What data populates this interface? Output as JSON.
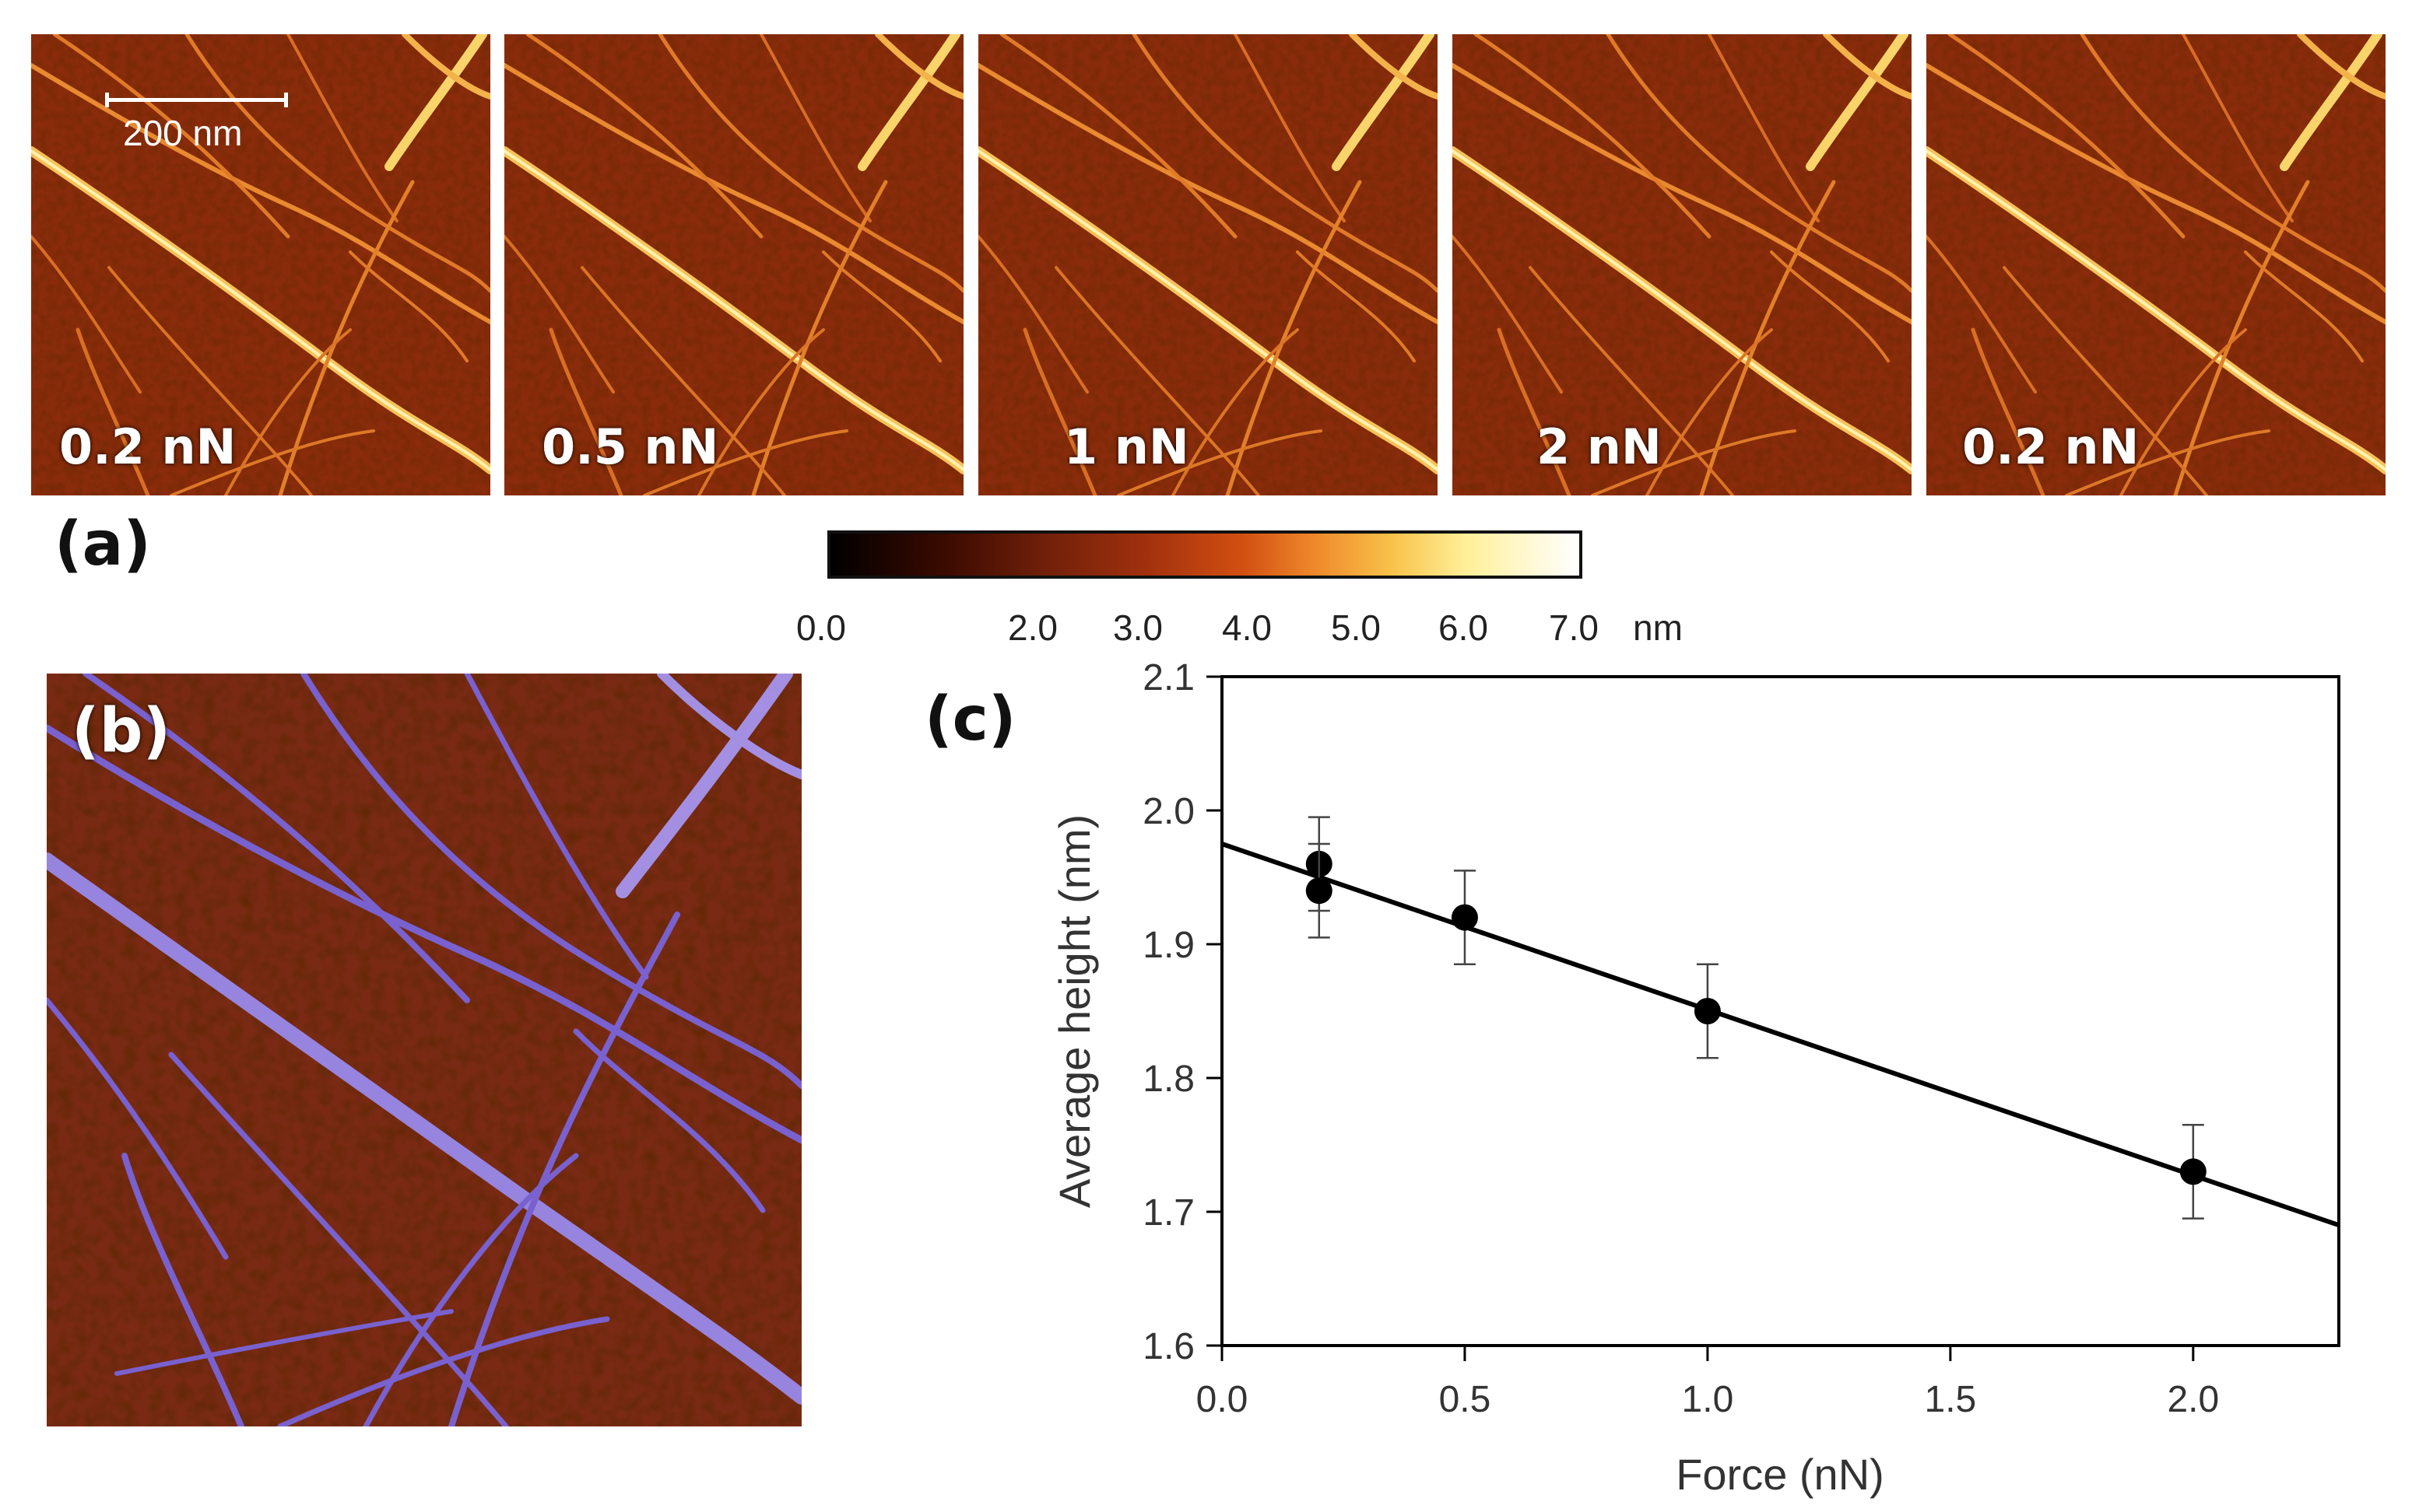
{
  "panel_a": {
    "label": "(a)",
    "scale_bar_label": "200 nm",
    "forces": [
      "0.2 nN",
      "0.5 nN",
      "1 nN",
      "2 nN",
      "0.2 nN"
    ],
    "colorbar": {
      "ticks": [
        "0.0",
        "2.0",
        "3.0",
        "4.0",
        "5.0",
        "6.0",
        "7.0"
      ],
      "unit": "nm"
    }
  },
  "panel_b": {
    "label": "(b)"
  },
  "panel_c": {
    "label": "(c)"
  },
  "chart_data": {
    "type": "scatter",
    "xlabel": "Force (nN)",
    "ylabel": "Average height (nm)",
    "xlim": [
      0.0,
      2.3
    ],
    "ylim": [
      1.6,
      2.1
    ],
    "xticks": [
      "0.0",
      "0.5",
      "1.0",
      "1.5",
      "2.0"
    ],
    "yticks": [
      "1.6",
      "1.7",
      "1.8",
      "1.9",
      "2.0",
      "2.1"
    ],
    "points": [
      {
        "x": 0.2,
        "y": 1.96,
        "err": 0.035
      },
      {
        "x": 0.2,
        "y": 1.94,
        "err": 0.035
      },
      {
        "x": 0.5,
        "y": 1.92,
        "err": 0.035
      },
      {
        "x": 1.0,
        "y": 1.85,
        "err": 0.035
      },
      {
        "x": 2.0,
        "y": 1.73,
        "err": 0.035
      }
    ],
    "fit_line": {
      "x": [
        0.0,
        2.3
      ],
      "y": [
        1.975,
        1.69
      ]
    }
  }
}
